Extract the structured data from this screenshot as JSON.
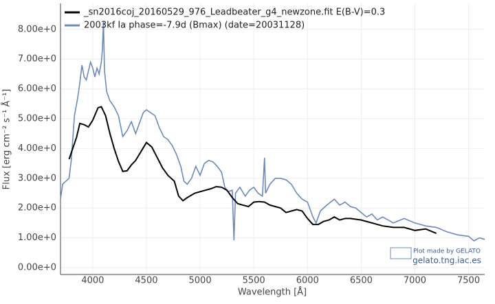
{
  "chart_data": {
    "type": "line",
    "xlabel": "Wavelength [Å]",
    "ylabel": "Flux [erg cm⁻² s⁻¹ Å⁻¹]",
    "annotations": [
      "Plot made by GELATO",
      "gelato.tng.iac.es"
    ],
    "xlim": [
      3700,
      7650
    ],
    "ylim": [
      -0.23,
      8.87
    ],
    "xticks": [
      4000,
      4500,
      5000,
      5500,
      6000,
      6500,
      7000,
      7500
    ],
    "yticks": [
      {
        "value": 0,
        "label": "0.00e+0"
      },
      {
        "value": 1,
        "label": "1.00e+0"
      },
      {
        "value": 2,
        "label": "2.00e+0"
      },
      {
        "value": 3,
        "label": "3.00e+0"
      },
      {
        "value": 4,
        "label": "4.00e+0"
      },
      {
        "value": 5,
        "label": "5.00e+0"
      },
      {
        "value": 6,
        "label": "6.00e+0"
      },
      {
        "value": 7,
        "label": "7.00e+0"
      },
      {
        "value": 8,
        "label": "8.00e+0"
      }
    ],
    "grid": true,
    "legend": "upper left",
    "series": [
      {
        "name": "_sn2016coj_20160529_976_Leadbeater_g4_newzone.fit  E(B-V)=0.3",
        "color": "#000000",
        "x": [
          3780,
          3850,
          3880,
          3920,
          3960,
          4000,
          4050,
          4080,
          4120,
          4160,
          4200,
          4240,
          4280,
          4320,
          4360,
          4400,
          4450,
          4500,
          4550,
          4600,
          4650,
          4700,
          4760,
          4800,
          4840,
          4880,
          4950,
          5000,
          5050,
          5100,
          5150,
          5200,
          5250,
          5300,
          5350,
          5400,
          5450,
          5500,
          5550,
          5600,
          5650,
          5700,
          5750,
          5800,
          5850,
          5900,
          5950,
          6000,
          6050,
          6100,
          6150,
          6200,
          6250,
          6300,
          6350,
          6400,
          6500,
          6600,
          6700,
          6800,
          6900,
          7000,
          7100,
          7200
        ],
        "values": [
          3.64,
          4.38,
          4.84,
          4.8,
          4.72,
          4.95,
          5.37,
          5.4,
          5.1,
          4.5,
          4.0,
          3.57,
          3.23,
          3.25,
          3.45,
          3.6,
          3.9,
          4.2,
          4.05,
          3.7,
          3.35,
          3.1,
          2.9,
          2.4,
          2.25,
          2.35,
          2.5,
          2.55,
          2.6,
          2.65,
          2.72,
          2.7,
          2.6,
          2.35,
          2.15,
          2.1,
          2.05,
          2.2,
          2.22,
          2.2,
          2.1,
          2.05,
          2.0,
          1.85,
          1.9,
          1.95,
          1.9,
          1.65,
          1.45,
          1.45,
          1.55,
          1.6,
          1.7,
          1.6,
          1.65,
          1.65,
          1.6,
          1.5,
          1.4,
          1.35,
          1.35,
          1.25,
          1.3,
          1.15
        ]
      },
      {
        "name": "2003kf  Ia  phase=-7.9d (Bmax)  (date=20031128)",
        "color": "#6b88bf",
        "x": [
          3700,
          3720,
          3750,
          3780,
          3800,
          3830,
          3860,
          3880,
          3900,
          3920,
          3940,
          3960,
          3980,
          4000,
          4020,
          4040,
          4060,
          4080,
          4090,
          4100,
          4110,
          4130,
          4160,
          4200,
          4240,
          4280,
          4320,
          4360,
          4400,
          4440,
          4470,
          4500,
          4540,
          4580,
          4620,
          4660,
          4700,
          4740,
          4780,
          4820,
          4850,
          4880,
          4920,
          4960,
          5000,
          5040,
          5080,
          5120,
          5160,
          5200,
          5230,
          5260,
          5300,
          5315,
          5330,
          5370,
          5420,
          5460,
          5500,
          5540,
          5580,
          5600,
          5610,
          5650,
          5700,
          5750,
          5800,
          5850,
          5900,
          5950,
          6000,
          6050,
          6080,
          6120,
          6180,
          6250,
          6300,
          6350,
          6400,
          6450,
          6500,
          6550,
          6600,
          6650,
          6700,
          6800,
          6900,
          7000,
          7100,
          7200,
          7300,
          7400,
          7500,
          7550,
          7600,
          7650
        ],
        "values": [
          2.3,
          2.8,
          2.9,
          3.0,
          3.6,
          5.1,
          5.7,
          6.2,
          6.8,
          6.4,
          6.3,
          6.6,
          6.9,
          6.7,
          6.4,
          6.7,
          6.5,
          6.9,
          7.3,
          8.25,
          6.6,
          5.9,
          5.6,
          5.4,
          5.1,
          4.4,
          4.6,
          4.9,
          4.5,
          4.9,
          5.2,
          5.3,
          5.2,
          5.1,
          4.7,
          4.4,
          4.3,
          4.1,
          3.8,
          3.4,
          2.9,
          2.8,
          3.0,
          3.4,
          3.1,
          3.5,
          3.6,
          3.55,
          3.4,
          3.2,
          2.7,
          2.55,
          2.6,
          0.92,
          2.5,
          2.7,
          2.4,
          2.6,
          2.7,
          2.5,
          2.4,
          3.69,
          2.5,
          2.8,
          3.0,
          3.0,
          2.95,
          2.8,
          2.5,
          2.3,
          2.2,
          1.7,
          1.5,
          1.9,
          2.1,
          2.3,
          2.1,
          2.2,
          2.05,
          2.0,
          1.85,
          1.7,
          1.8,
          1.6,
          1.7,
          1.5,
          1.65,
          1.5,
          1.4,
          1.35,
          1.2,
          1.1,
          1.05,
          0.9,
          1.0,
          0.95
        ]
      }
    ]
  }
}
